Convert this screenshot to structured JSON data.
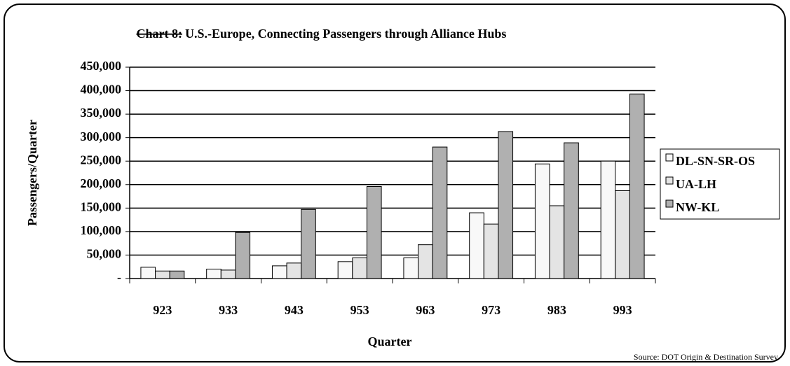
{
  "chart_data": {
    "type": "bar",
    "title_label": "Chart 8:",
    "title": "U.S.-Europe, Connecting Passengers through Alliance Hubs",
    "y_label": "Passengers/Quarter",
    "x_label": "Quarter",
    "source": "Source: DOT Origin & Destination Survey",
    "categories": [
      "923",
      "933",
      "943",
      "953",
      "963",
      "973",
      "983",
      "993"
    ],
    "series": [
      {
        "name": "DL-SN-SR-OS",
        "color": "#f8f8f8",
        "values": [
          24000,
          20000,
          27000,
          36000,
          44000,
          140000,
          244000,
          250000
        ]
      },
      {
        "name": "UA-LH",
        "color": "#e4e4e4",
        "values": [
          16000,
          18000,
          33000,
          44000,
          72000,
          116000,
          155000,
          187000
        ]
      },
      {
        "name": "NW-KL",
        "color": "#b0b0b0",
        "values": [
          16000,
          98000,
          147000,
          196000,
          280000,
          313000,
          289000,
          393000
        ]
      }
    ],
    "ylim": [
      0,
      450000
    ],
    "yticks": [
      {
        "value": 0,
        "label": "-"
      },
      {
        "value": 50000,
        "label": "50,000"
      },
      {
        "value": 100000,
        "label": "100,000"
      },
      {
        "value": 150000,
        "label": "150,000"
      },
      {
        "value": 200000,
        "label": "200,000"
      },
      {
        "value": 250000,
        "label": "250,000"
      },
      {
        "value": 300000,
        "label": "300,000"
      },
      {
        "value": 350000,
        "label": "350,000"
      },
      {
        "value": 400000,
        "label": "400,000"
      },
      {
        "value": 450000,
        "label": "450,000"
      }
    ],
    "grid": true,
    "legend": "right"
  }
}
